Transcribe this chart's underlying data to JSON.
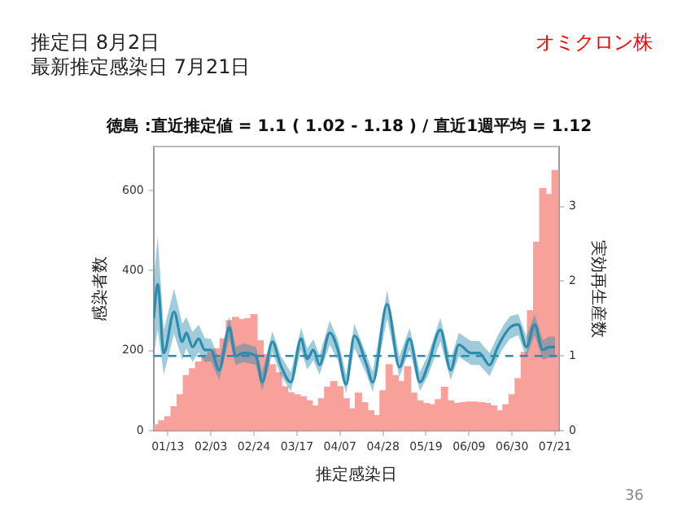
{
  "chart_data": {
    "type": "bar",
    "title": "徳島 :直近推定値 = 1.1 ( 1.02 - 1.18 ) / 直近1週平均 = 1.12",
    "xlabel": "推定感染日",
    "ylabel": "感染者数",
    "y2label": "実効再生産数",
    "annotations": [
      "推定日 8月2日",
      "最新推定感染日 7月21日",
      "オミクロン株",
      "36"
    ],
    "xlim": [
      "--01-06",
      "--07-23"
    ],
    "xticks": [
      {
        "value": "--01-13",
        "label": "01/13"
      },
      {
        "value": "--02-03",
        "label": "02/03"
      },
      {
        "value": "--02-24",
        "label": "02/24"
      },
      {
        "value": "--03-17",
        "label": "03/17"
      },
      {
        "value": "--04-07",
        "label": "04/07"
      },
      {
        "value": "--04-28",
        "label": "04/28"
      },
      {
        "value": "--05-19",
        "label": "05/19"
      },
      {
        "value": "--06-09",
        "label": "06/09"
      },
      {
        "value": "--06-30",
        "label": "06/30"
      },
      {
        "value": "--07-21",
        "label": "07/21"
      }
    ],
    "ylim": [
      0,
      710
    ],
    "yticks": [
      0,
      200,
      400,
      600
    ],
    "y2lim": [
      0,
      3.8
    ],
    "y2ticks": [
      0,
      1,
      2,
      3
    ],
    "grid": false,
    "legend": false,
    "ref_lines": [
      {
        "axis": "y2",
        "value": 1,
        "color": "#2b8cad",
        "line_style": "dashed"
      }
    ],
    "series": [
      {
        "type": "bar",
        "color": "#f8a19b",
        "x": [
          "--01-07",
          "--01-10",
          "--01-13",
          "--01-16",
          "--01-19",
          "--01-22",
          "--01-25",
          "--01-28",
          "--01-31",
          "--02-03",
          "--02-06",
          "--02-09",
          "--02-12",
          "--02-15",
          "--02-18",
          "--02-21",
          "--02-24",
          "--02-27",
          "--03-02",
          "--03-05",
          "--03-08",
          "--03-11",
          "--03-14",
          "--03-17",
          "--03-20",
          "--03-23",
          "--03-26",
          "--03-29",
          "--04-01",
          "--04-04",
          "--04-07",
          "--04-10",
          "--04-13",
          "--04-16",
          "--04-19",
          "--04-22",
          "--04-25",
          "--04-28",
          "--05-01",
          "--05-04",
          "--05-07",
          "--05-10",
          "--05-13",
          "--05-16",
          "--05-19",
          "--05-22",
          "--05-25",
          "--05-28",
          "--05-31",
          "--06-03",
          "--06-06",
          "--06-09",
          "--06-12",
          "--06-15",
          "--06-18",
          "--06-21",
          "--06-24",
          "--06-27",
          "--06-30",
          "--07-03",
          "--07-06",
          "--07-09",
          "--07-12",
          "--07-15",
          "--07-18",
          "--07-21"
        ],
        "values": [
          15,
          25,
          35,
          60,
          90,
          138,
          155,
          172,
          188,
          196,
          205,
          230,
          275,
          283,
          278,
          280,
          290,
          225,
          190,
          165,
          145,
          110,
          95,
          90,
          85,
          75,
          62,
          80,
          109,
          123,
          110,
          80,
          55,
          94,
          70,
          50,
          38,
          100,
          165,
          138,
          123,
          160,
          94,
          75,
          68,
          65,
          78,
          109,
          75,
          68,
          70,
          72,
          72,
          70,
          68,
          62,
          50,
          65,
          90,
          130,
          196,
          300,
          471,
          605,
          590,
          650
        ]
      },
      {
        "type": "line",
        "axis": "y2",
        "color": "#2b8cad",
        "x": [
          "--01-06",
          "--01-08",
          "--01-11",
          "--01-16",
          "--01-20",
          "--01-22",
          "--01-25",
          "--01-28",
          "--01-31",
          "--02-03",
          "--02-07",
          "--02-12",
          "--02-15",
          "--02-19",
          "--02-25",
          "--02-28",
          "--03-05",
          "--03-09",
          "--03-14",
          "--03-19",
          "--03-22",
          "--03-25",
          "--03-28",
          "--04-02",
          "--04-06",
          "--04-10",
          "--04-14",
          "--04-20",
          "--04-23",
          "--04-30",
          "--05-06",
          "--05-11",
          "--05-16",
          "--05-20",
          "--05-26",
          "--05-31",
          "--06-04",
          "--06-10",
          "--06-14",
          "--06-19",
          "--06-23",
          "--06-26",
          "--06-29",
          "--07-03",
          "--07-07",
          "--07-11",
          "--07-15",
          "--07-18",
          "--07-21"
        ],
        "values": [
          1.5,
          1.96,
          1.04,
          1.59,
          1.19,
          1.31,
          1.12,
          1.23,
          1.08,
          1.08,
          0.81,
          1.38,
          1.0,
          1.04,
          1.0,
          0.65,
          1.19,
          0.88,
          0.65,
          1.23,
          0.96,
          1.08,
          0.88,
          1.31,
          1.08,
          0.62,
          1.27,
          0.88,
          0.65,
          1.69,
          0.85,
          1.23,
          0.65,
          0.88,
          1.35,
          0.81,
          1.15,
          1.04,
          1.04,
          0.88,
          1.12,
          1.27,
          1.38,
          1.42,
          1.12,
          1.42,
          1.08,
          1.12,
          1.12
        ],
        "lower": [
          1.0,
          1.35,
          0.75,
          1.3,
          0.95,
          1.1,
          0.92,
          1.05,
          0.92,
          0.93,
          0.68,
          1.23,
          0.88,
          0.92,
          0.88,
          0.53,
          1.05,
          0.75,
          0.53,
          1.08,
          0.82,
          0.94,
          0.75,
          1.15,
          0.94,
          0.5,
          1.11,
          0.75,
          0.52,
          1.5,
          0.72,
          1.08,
          0.53,
          0.74,
          1.19,
          0.68,
          0.99,
          0.88,
          0.88,
          0.73,
          0.97,
          1.12,
          1.23,
          1.28,
          0.98,
          1.28,
          0.95,
          0.98,
          0.98
        ],
        "upper": [
          2.0,
          2.6,
          1.35,
          1.9,
          1.43,
          1.52,
          1.32,
          1.42,
          1.24,
          1.23,
          0.95,
          1.53,
          1.12,
          1.17,
          1.12,
          0.78,
          1.33,
          1.01,
          0.78,
          1.38,
          1.1,
          1.22,
          1.01,
          1.47,
          1.22,
          0.75,
          1.43,
          1.01,
          0.79,
          1.88,
          0.99,
          1.38,
          0.78,
          1.02,
          1.51,
          0.95,
          1.31,
          1.2,
          1.2,
          1.04,
          1.27,
          1.42,
          1.53,
          1.56,
          1.26,
          1.56,
          1.21,
          1.26,
          1.26
        ]
      }
    ]
  }
}
